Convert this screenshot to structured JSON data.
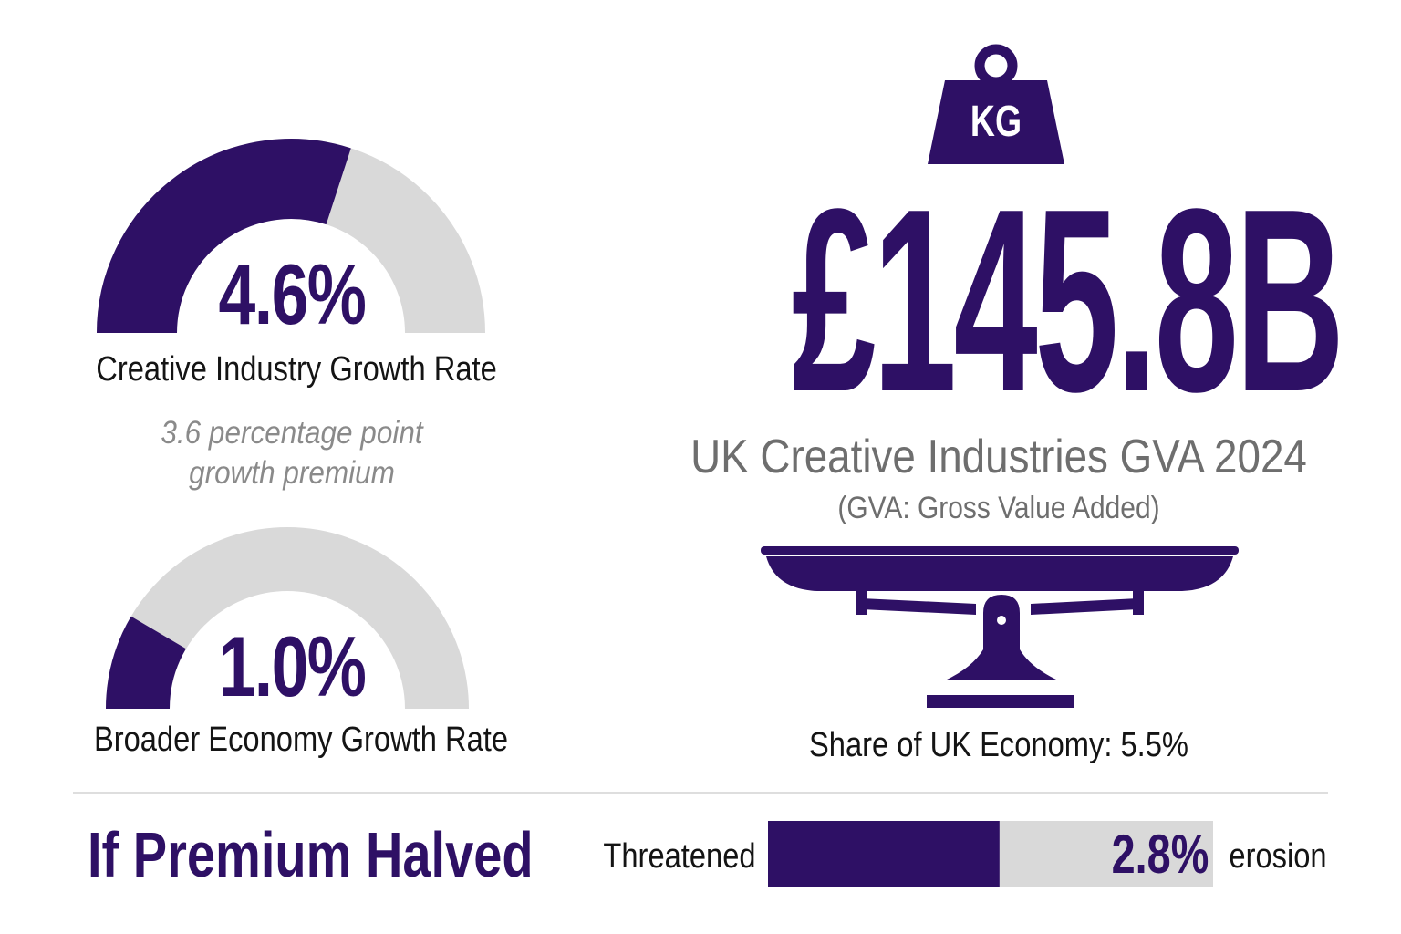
{
  "colors": {
    "accent": "#2e1065",
    "track": "#d9d9d9",
    "muted_text": "#8a8a8a",
    "subtitle_text": "#6e6e6e",
    "body_text": "#141414"
  },
  "chart_data": [
    {
      "type": "gauge",
      "value_label": "4.6%",
      "value": 4.6,
      "fill_fraction": 0.6,
      "label": "Creative Industry Growth Rate",
      "note": [
        "3.6 percentage point",
        "growth premium"
      ]
    },
    {
      "type": "gauge",
      "value_label": "1.0%",
      "value": 1.0,
      "fill_fraction": 0.17,
      "label": "Broader Economy Growth Rate"
    },
    {
      "type": "bar",
      "left_label": "Threatened",
      "value_label": "2.8%",
      "value": 2.8,
      "fill_fraction": 0.52,
      "right_label": "erosion"
    }
  ],
  "headline": {
    "weight_label": "KG",
    "value": "£145.8B",
    "title": "UK Creative Industries GVA 2024",
    "subtitle": "(GVA: Gross Value Added)",
    "share": "Share of UK Economy: 5.5%"
  },
  "scenario": {
    "title": "If Premium Halved"
  },
  "icons": {
    "weight": "kg-weight-icon",
    "scale": "balance-scale-icon"
  }
}
